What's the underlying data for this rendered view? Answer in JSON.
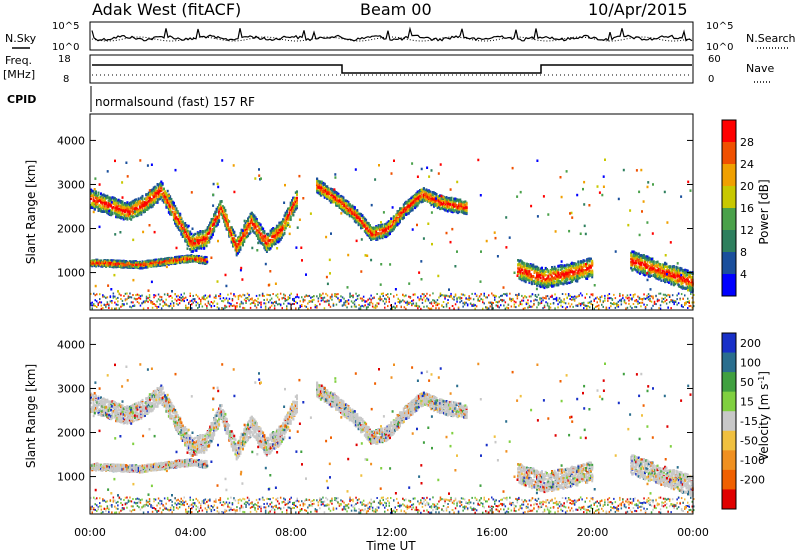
{
  "header": {
    "station": "Adak West (fitACF)",
    "beam": "Beam 00",
    "date": "10/Apr/2015"
  },
  "noise_panel": {
    "left_label": "N.Sky",
    "right_label": "N.Search",
    "tick_top": "10^5",
    "tick_bottom": "10^0"
  },
  "freq_panel": {
    "left_label_1": "Freq.",
    "left_label_2": "[MHz]",
    "right_label": "Nave",
    "left_ticks": [
      "18",
      "8"
    ],
    "right_ticks": [
      "60",
      "0"
    ]
  },
  "cpid": {
    "label": "CPID",
    "text": "normalsound (fast) 157 RF"
  },
  "colors": {
    "power_scale": [
      "#0000ff",
      "#1a4f9c",
      "#2e7f5e",
      "#4aa14a",
      "#c8c800",
      "#f0a000",
      "#f05000",
      "#ff0000"
    ],
    "velocity_scale": [
      "#1830c8",
      "#2a6e8e",
      "#40a040",
      "#80d040",
      "#c8c8c8",
      "#f0c040",
      "#f09020",
      "#f06000",
      "#e00000"
    ],
    "ground_scatter": "#c0c0c0"
  },
  "chart_data": [
    {
      "type": "heatmap",
      "name": "power",
      "ylabel": "Slant Range [km]",
      "ylim": [
        150,
        4600
      ],
      "yticks": [
        "1000",
        "2000",
        "3000",
        "4000"
      ],
      "colorbar": {
        "label": "Power [dB]",
        "ticks": [
          "4",
          "8",
          "12",
          "16",
          "20",
          "24",
          "28"
        ],
        "range": [
          0,
          32
        ]
      },
      "echo_bands": [
        {
          "t": [
            0.0,
            1.5,
            2.2,
            2.8,
            3.4,
            4.0,
            4.6,
            5.2,
            5.8,
            6.4,
            7.0,
            7.6,
            8.2
          ],
          "range": [
            2700,
            2400,
            2600,
            2900,
            2300,
            1700,
            1800,
            2500,
            1600,
            2200,
            1700,
            2000,
            2700
          ],
          "width": 420
        },
        {
          "t": [
            9.0,
            10.0,
            10.6,
            11.2,
            11.8,
            12.4,
            13.2,
            14.0,
            15.0
          ],
          "range": [
            3000,
            2600,
            2300,
            1900,
            2000,
            2400,
            2800,
            2600,
            2500
          ],
          "width": 320
        },
        {
          "t": [
            0.0,
            2.0,
            4.0,
            4.6
          ],
          "range": [
            1250,
            1200,
            1350,
            1300
          ],
          "width": 150
        },
        {
          "t": [
            17.0,
            18.0,
            19.0,
            20.0
          ],
          "range": [
            1100,
            900,
            1000,
            1150
          ],
          "width": 450
        },
        {
          "t": [
            21.5,
            22.5,
            23.5,
            24.0
          ],
          "range": [
            1300,
            1100,
            900,
            800
          ],
          "width": 450
        }
      ]
    },
    {
      "type": "heatmap",
      "name": "velocity",
      "ylabel": "Slant Range [km]",
      "ylim": [
        150,
        4600
      ],
      "yticks": [
        "1000",
        "2000",
        "3000",
        "4000"
      ],
      "xlabel": "Time UT",
      "xlim": [
        0,
        24
      ],
      "xticks": [
        "00:00",
        "04:00",
        "08:00",
        "12:00",
        "16:00",
        "20:00",
        "00:00"
      ],
      "colorbar": {
        "label": "Velocity [m s^-1]",
        "ticks": [
          "200",
          "100",
          "50",
          "15",
          "-15",
          "-50",
          "-100",
          "-200"
        ],
        "range": [
          -250,
          250
        ]
      }
    }
  ]
}
